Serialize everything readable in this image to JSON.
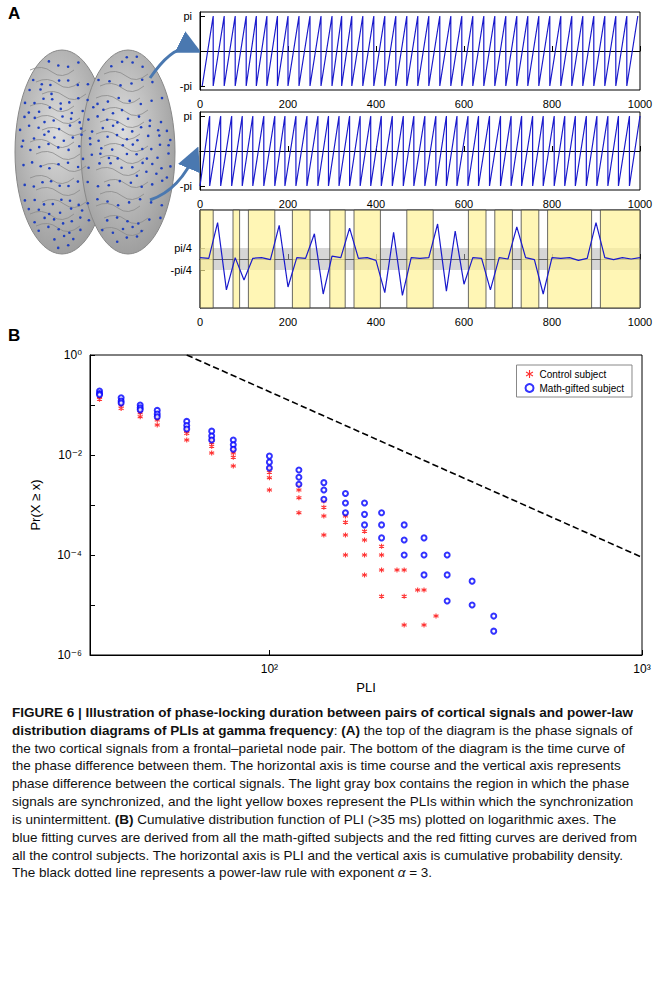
{
  "panel_labels": [
    "A",
    "B"
  ],
  "chart_data": [
    {
      "type": "line",
      "panel": "A",
      "grid": false,
      "color": "#1a1acc",
      "x": [
        5,
        30,
        30,
        55,
        55,
        80,
        80,
        105,
        105,
        128,
        128,
        152,
        152,
        176,
        176,
        200,
        200,
        225,
        225,
        250,
        250,
        275,
        275,
        300,
        300,
        322,
        322,
        345,
        345,
        370,
        370,
        395,
        395,
        420,
        420,
        445,
        445,
        470,
        470,
        495,
        495,
        520,
        520,
        545,
        545,
        570,
        570,
        595,
        595,
        620,
        620,
        645,
        645,
        670,
        670,
        695,
        695,
        720,
        720,
        745,
        745,
        770,
        770,
        795,
        795,
        820,
        820,
        845,
        845,
        870,
        870,
        895,
        895,
        920,
        920,
        945,
        945,
        970,
        970,
        995
      ],
      "values": [
        -3.14,
        3.14,
        -3.14,
        3.14,
        -3.14,
        3.14,
        -3.14,
        3.14,
        -3.14,
        3.14,
        -3.14,
        3.14,
        -3.14,
        3.14,
        -3.14,
        3.14,
        -3.14,
        3.14,
        -3.14,
        3.14,
        -3.14,
        3.14,
        -3.14,
        3.14,
        -3.14,
        3.14,
        -3.14,
        3.14,
        -3.14,
        3.14,
        -3.14,
        3.14,
        -3.14,
        3.14,
        -3.14,
        3.14,
        -3.14,
        3.14,
        -3.14,
        3.14,
        -3.14,
        3.14,
        -3.14,
        3.14,
        -3.14,
        3.14,
        -3.14,
        3.14,
        -3.14,
        3.14,
        -3.14,
        3.14,
        -3.14,
        3.14,
        -3.14,
        3.14,
        -3.14,
        3.14,
        -3.14,
        3.14,
        -3.14,
        3.14,
        -3.14,
        3.14,
        -3.14,
        3.14,
        -3.14,
        3.14,
        -3.14,
        3.14,
        -3.14,
        3.14,
        -3.14,
        3.14,
        -3.14,
        3.14,
        -3.14,
        3.14,
        -3.14,
        3.14
      ],
      "xlim": [
        0,
        1000
      ],
      "xticks": [
        0,
        200,
        400,
        600,
        800,
        1000
      ],
      "ylim": [
        -3.5,
        3.5
      ],
      "yticks": [
        {
          "value": -3.1416,
          "label": "-pi"
        },
        {
          "value": 3.1416,
          "label": "pi"
        }
      ]
    },
    {
      "type": "line",
      "panel": "A",
      "grid": false,
      "color": "#1a1acc",
      "x": [
        0,
        22,
        22,
        47,
        47,
        72,
        72,
        96,
        96,
        120,
        120,
        145,
        145,
        170,
        170,
        193,
        193,
        218,
        218,
        243,
        243,
        268,
        268,
        292,
        292,
        316,
        316,
        340,
        340,
        364,
        364,
        388,
        388,
        412,
        412,
        437,
        437,
        462,
        462,
        486,
        486,
        511,
        511,
        536,
        536,
        560,
        560,
        584,
        584,
        609,
        609,
        633,
        633,
        658,
        658,
        683,
        683,
        707,
        707,
        731,
        731,
        756,
        756,
        780,
        780,
        805,
        805,
        829,
        829,
        853,
        853,
        878,
        878,
        902,
        902,
        927,
        927,
        951,
        951,
        976,
        976,
        1000
      ],
      "values": [
        -3.14,
        3.14,
        -3.14,
        3.14,
        -3.14,
        3.14,
        -3.14,
        3.14,
        -3.14,
        3.14,
        -3.14,
        3.14,
        -3.14,
        3.14,
        -3.14,
        3.14,
        -3.14,
        3.14,
        -3.14,
        3.14,
        -3.14,
        3.14,
        -3.14,
        3.14,
        -3.14,
        3.14,
        -3.14,
        3.14,
        -3.14,
        3.14,
        -3.14,
        3.14,
        -3.14,
        3.14,
        -3.14,
        3.14,
        -3.14,
        3.14,
        -3.14,
        3.14,
        -3.14,
        3.14,
        -3.14,
        3.14,
        -3.14,
        3.14,
        -3.14,
        3.14,
        -3.14,
        3.14,
        -3.14,
        3.14,
        -3.14,
        3.14,
        -3.14,
        3.14,
        -3.14,
        3.14,
        -3.14,
        3.14,
        -3.14,
        3.14,
        -3.14,
        3.14,
        -3.14,
        3.14,
        -3.14,
        3.14,
        -3.14,
        3.14,
        -3.14,
        3.14,
        -3.14,
        3.14,
        -3.14,
        3.14,
        -3.14,
        3.14,
        -3.14,
        3.14,
        -3.14,
        3.14
      ],
      "xlim": [
        0,
        1000
      ],
      "xticks": [
        0,
        200,
        400,
        600,
        800,
        1000
      ],
      "ylim": [
        -3.5,
        3.5
      ],
      "yticks": [
        {
          "value": -3.1416,
          "label": "-pi"
        },
        {
          "value": 3.1416,
          "label": "pi"
        }
      ]
    },
    {
      "type": "line",
      "panel": "A",
      "grid": false,
      "color": "#1a1acc",
      "x": [
        0,
        20,
        40,
        60,
        80,
        100,
        120,
        140,
        160,
        180,
        200,
        220,
        240,
        260,
        280,
        300,
        320,
        340,
        360,
        380,
        400,
        420,
        440,
        460,
        480,
        500,
        520,
        540,
        560,
        580,
        600,
        620,
        640,
        660,
        680,
        700,
        720,
        740,
        760,
        780,
        800,
        820,
        840,
        860,
        880,
        900,
        920,
        940,
        960,
        980,
        1000
      ],
      "values": [
        0.1,
        0.05,
        2.6,
        -2.2,
        0.1,
        -1.5,
        0.05,
        0.1,
        -0.05,
        2.4,
        -2.0,
        0.1,
        0.05,
        1.8,
        -2.5,
        0.2,
        0.1,
        2.2,
        0.05,
        0.1,
        -0.1,
        -2.4,
        1.9,
        -2.6,
        0.1,
        0.05,
        0.1,
        2.5,
        -2.3,
        2.0,
        -1.8,
        0.1,
        0.05,
        -2.2,
        0.1,
        0.0,
        2.3,
        0.1,
        -0.05,
        -2.5,
        0.1,
        0.05,
        0.1,
        -0.1,
        0.05,
        2.6,
        0.1,
        -0.05,
        0.1,
        0.0,
        0.1
      ],
      "locked_band": [
        -0.7854,
        0.7854
      ],
      "pli_intervals": [
        [
          0,
          30
        ],
        [
          75,
          90
        ],
        [
          110,
          170
        ],
        [
          210,
          250
        ],
        [
          295,
          330
        ],
        [
          350,
          410
        ],
        [
          470,
          530
        ],
        [
          610,
          650
        ],
        [
          670,
          710
        ],
        [
          730,
          770
        ],
        [
          790,
          890
        ],
        [
          910,
          1000
        ]
      ],
      "xlim": [
        0,
        1000
      ],
      "xticks": [
        0,
        200,
        400,
        600,
        800,
        1000
      ],
      "ylim": [
        -3.5,
        3.5
      ],
      "yticks": [
        {
          "value": -0.7854,
          "label": "-pi/4"
        },
        {
          "value": 0.7854,
          "label": "pi/4"
        }
      ]
    },
    {
      "type": "scatter",
      "panel": "B",
      "log": true,
      "grid": false,
      "legend": "upper right",
      "xlabel": "PLI",
      "ylabel": "Pr(X ≥ x)",
      "xlim": [
        33,
        1000
      ],
      "xticks": [
        {
          "value": 100,
          "label": "10²"
        },
        {
          "value": 1000,
          "label": "10³"
        }
      ],
      "ylim": [
        1e-06,
        1
      ],
      "yticks": [
        {
          "value": 1e-06,
          "label": "10⁻⁶"
        },
        {
          "value": 0.0001,
          "label": "10⁻⁴"
        },
        {
          "value": 0.01,
          "label": "10⁻²"
        },
        {
          "value": 1,
          "label": "10⁰"
        }
      ],
      "series": [
        {
          "name": "Control subject",
          "color": "#ff0000",
          "marker": "asterisk",
          "curves": [
            {
              "x": [
                35,
                40,
                45,
                50,
                60,
                70,
                80,
                100,
                120,
                140,
                160,
                180,
                200,
                230,
                260
              ],
              "y": [
                0.17,
                0.12,
                0.085,
                0.062,
                0.035,
                0.021,
                0.013,
                0.0055,
                0.0025,
                0.0012,
                0.0006,
                0.0003,
                0.00015,
                5e-05,
                2e-05
              ]
            },
            {
              "x": [
                35,
                40,
                45,
                50,
                60,
                70,
                80,
                100,
                120,
                140,
                160,
                180,
                200,
                230,
                260
              ],
              "y": [
                0.15,
                0.1,
                0.07,
                0.05,
                0.027,
                0.015,
                0.009,
                0.0035,
                0.0014,
                0.0006,
                0.00025,
                0.0001,
                5e-05,
                1.5e-05,
                4e-06
              ]
            },
            {
              "x": [
                35,
                40,
                45,
                50,
                60,
                70,
                80,
                100,
                120,
                140,
                160,
                180,
                200,
                230
              ],
              "y": [
                0.13,
                0.085,
                0.058,
                0.04,
                0.02,
                0.011,
                0.006,
                0.002,
                0.0007,
                0.00025,
                0.0001,
                4e-05,
                1.5e-05,
                4e-06
              ]
            },
            {
              "x": [
                35,
                40,
                45,
                50,
                60,
                70,
                80,
                100,
                120,
                140,
                160,
                180,
                200,
                220,
                250,
                280
              ],
              "y": [
                0.16,
                0.11,
                0.078,
                0.057,
                0.031,
                0.018,
                0.011,
                0.0045,
                0.002,
                0.0009,
                0.00045,
                0.0002,
                0.0001,
                5e-05,
                2e-05,
                6e-06
              ]
            }
          ]
        },
        {
          "name": "Math-gifted subject",
          "color": "#0000ff",
          "marker": "circle-open",
          "curves": [
            {
              "x": [
                35,
                40,
                45,
                50,
                60,
                70,
                80,
                100,
                120,
                140,
                160,
                180,
                200,
                230,
                260,
                300,
                350,
                400
              ],
              "y": [
                0.19,
                0.14,
                0.1,
                0.078,
                0.047,
                0.03,
                0.02,
                0.0095,
                0.005,
                0.0028,
                0.0017,
                0.0011,
                0.0007,
                0.0004,
                0.00022,
                0.0001,
                3e-05,
                6e-06
              ]
            },
            {
              "x": [
                35,
                40,
                45,
                50,
                60,
                70,
                80,
                100,
                120,
                140,
                160,
                180,
                200,
                230,
                260,
                300,
                350,
                400
              ],
              "y": [
                0.17,
                0.12,
                0.088,
                0.066,
                0.039,
                0.024,
                0.016,
                0.0072,
                0.0036,
                0.002,
                0.0011,
                0.00065,
                0.0004,
                0.0002,
                0.0001,
                4e-05,
                1e-05,
                3e-06
              ]
            },
            {
              "x": [
                35,
                40,
                45,
                50,
                60,
                70,
                80,
                100,
                120,
                140,
                160,
                180,
                200,
                230,
                260,
                300
              ],
              "y": [
                0.16,
                0.11,
                0.08,
                0.058,
                0.033,
                0.02,
                0.013,
                0.0055,
                0.0026,
                0.0013,
                0.0007,
                0.0004,
                0.00022,
                0.0001,
                4e-05,
                1.2e-05
              ]
            }
          ]
        }
      ],
      "reference_line": {
        "x": [
          60,
          1000
        ],
        "y": [
          1,
          9e-05
        ],
        "color": "#000000",
        "line_style": "dashed"
      }
    }
  ],
  "caption": [
    {
      "text": "FIGURE 6 | Illustration of phase-locking duration between pairs of cortical signals and power-law distribution diagrams of PLIs at gamma frequency",
      "bold": true
    },
    {
      "text": ": "
    },
    {
      "text": "(A)",
      "bold": true
    },
    {
      "text": " the top of the diagram is the phase signals of the two cortical signals from a frontal–parietal node pair. The bottom of the diagram is the time curve of the phase difference between them. The horizontal axis is time course and the vertical axis represents phase difference between the cortical signals. The light gray box contains the region in which the phase signals are synchronized, and the light yellow boxes represent the PLIs within which the synchronization is unintermittent. "
    },
    {
      "text": "(B)",
      "bold": true
    },
    {
      "text": " Cumulative distribution function of PLI (>35 ms) plotted on logarithmic axes. The blue fitting curves are derived from all the math-gifted subjects and the red fitting curves are derived from all the control subjects. The horizontal axis is PLI and the vertical axis is cumulative probability density. The black dotted line represents a power-law rule with exponent "
    },
    {
      "text": "α",
      "italic": true
    },
    {
      "text": " = 3."
    }
  ]
}
